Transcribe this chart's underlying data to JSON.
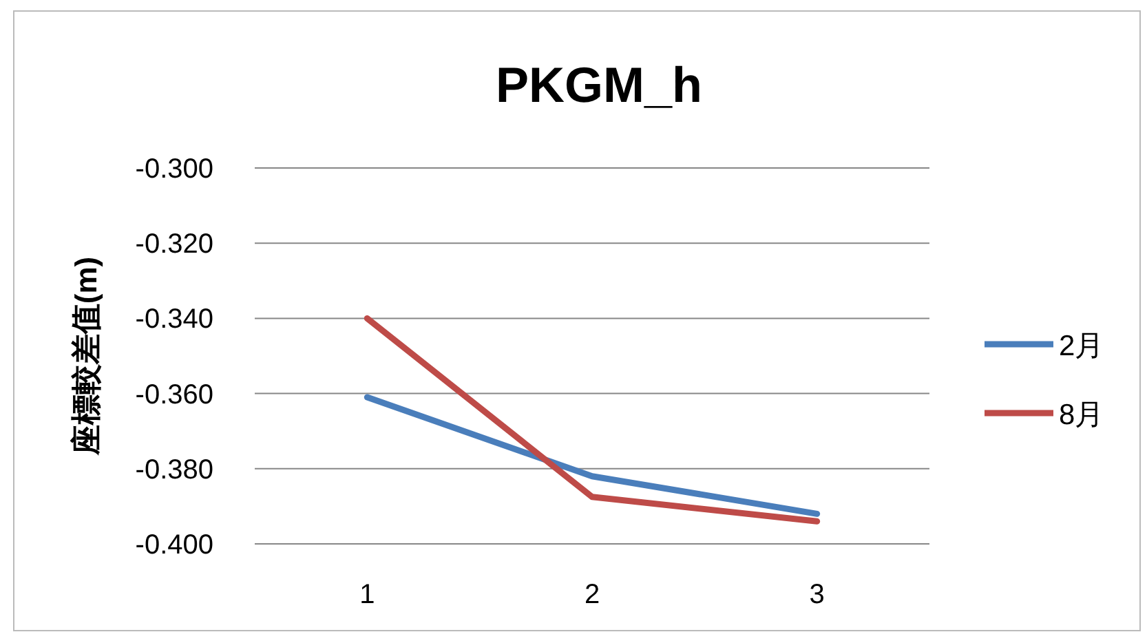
{
  "chart_data": {
    "type": "line",
    "title": "PKGM_h",
    "ylabel": "座標較差值(m)",
    "categories": [
      "1",
      "2",
      "3"
    ],
    "series": [
      {
        "name": "2月",
        "color": "#4a7ebb",
        "values": [
          -0.361,
          -0.382,
          -0.392
        ]
      },
      {
        "name": "8月",
        "color": "#be4b48",
        "values": [
          -0.34,
          -0.3875,
          -0.394
        ]
      }
    ],
    "ylim": [
      -0.4,
      -0.3
    ],
    "yticks": [
      {
        "value": -0.4,
        "label": "-0.400"
      },
      {
        "value": -0.38,
        "label": "-0.380"
      },
      {
        "value": -0.36,
        "label": "-0.360"
      },
      {
        "value": -0.34,
        "label": "-0.340"
      },
      {
        "value": -0.32,
        "label": "-0.320"
      },
      {
        "value": -0.3,
        "label": "-0.300"
      }
    ],
    "grid": "y",
    "legend": "right",
    "marker": "none",
    "line_style": "solid"
  }
}
